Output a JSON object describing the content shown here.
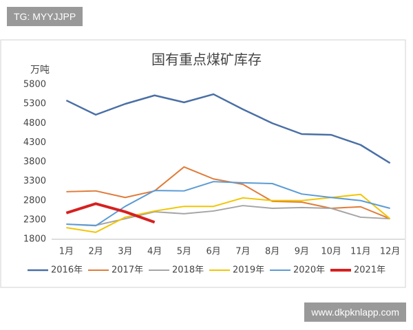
{
  "watermark_top": "TG: MYYJJPP",
  "watermark_bottom": "www.dkpknlapp.com",
  "chart_data": {
    "type": "line",
    "title": "国有重点煤矿库存",
    "y_label": "万吨",
    "categories": [
      "1月",
      "2月",
      "3月",
      "4月",
      "5月",
      "6月",
      "7月",
      "8月",
      "9月",
      "10月",
      "11月",
      "12月"
    ],
    "ylim": [
      1800,
      5800
    ],
    "yticks": [
      1800,
      2300,
      2800,
      3300,
      3800,
      4300,
      4800,
      5300,
      5800
    ],
    "grid": false,
    "legend": "bottom",
    "series": [
      {
        "name": "2016年",
        "color": "#4a6fa5",
        "width": 2.5,
        "values": [
          5390,
          5020,
          5300,
          5520,
          5340,
          5550,
          5160,
          4800,
          4520,
          4500,
          4240,
          3770
        ]
      },
      {
        "name": "2017年",
        "color": "#e07b39",
        "width": 2,
        "values": [
          3030,
          3050,
          2880,
          3050,
          3670,
          3360,
          3220,
          2780,
          2760,
          2600,
          2640,
          2330
        ]
      },
      {
        "name": "2018年",
        "color": "#a5a5a5",
        "width": 2,
        "values": [
          2190,
          2160,
          2330,
          2510,
          2460,
          2530,
          2670,
          2600,
          2620,
          2600,
          2370,
          2330
        ]
      },
      {
        "name": "2019年",
        "color": "#f2c500",
        "width": 2,
        "values": [
          2100,
          1980,
          2370,
          2530,
          2650,
          2650,
          2870,
          2800,
          2800,
          2880,
          2960,
          2330
        ]
      },
      {
        "name": "2020年",
        "color": "#5b9bd5",
        "width": 2,
        "values": [
          2190,
          2150,
          2650,
          3060,
          3050,
          3290,
          3260,
          3240,
          2970,
          2880,
          2800,
          2600
        ]
      },
      {
        "name": "2021年",
        "color": "#d62020",
        "width": 4,
        "values": [
          2480,
          2720,
          2510,
          2240,
          null,
          null,
          null,
          null,
          null,
          null,
          null,
          null
        ]
      }
    ]
  }
}
